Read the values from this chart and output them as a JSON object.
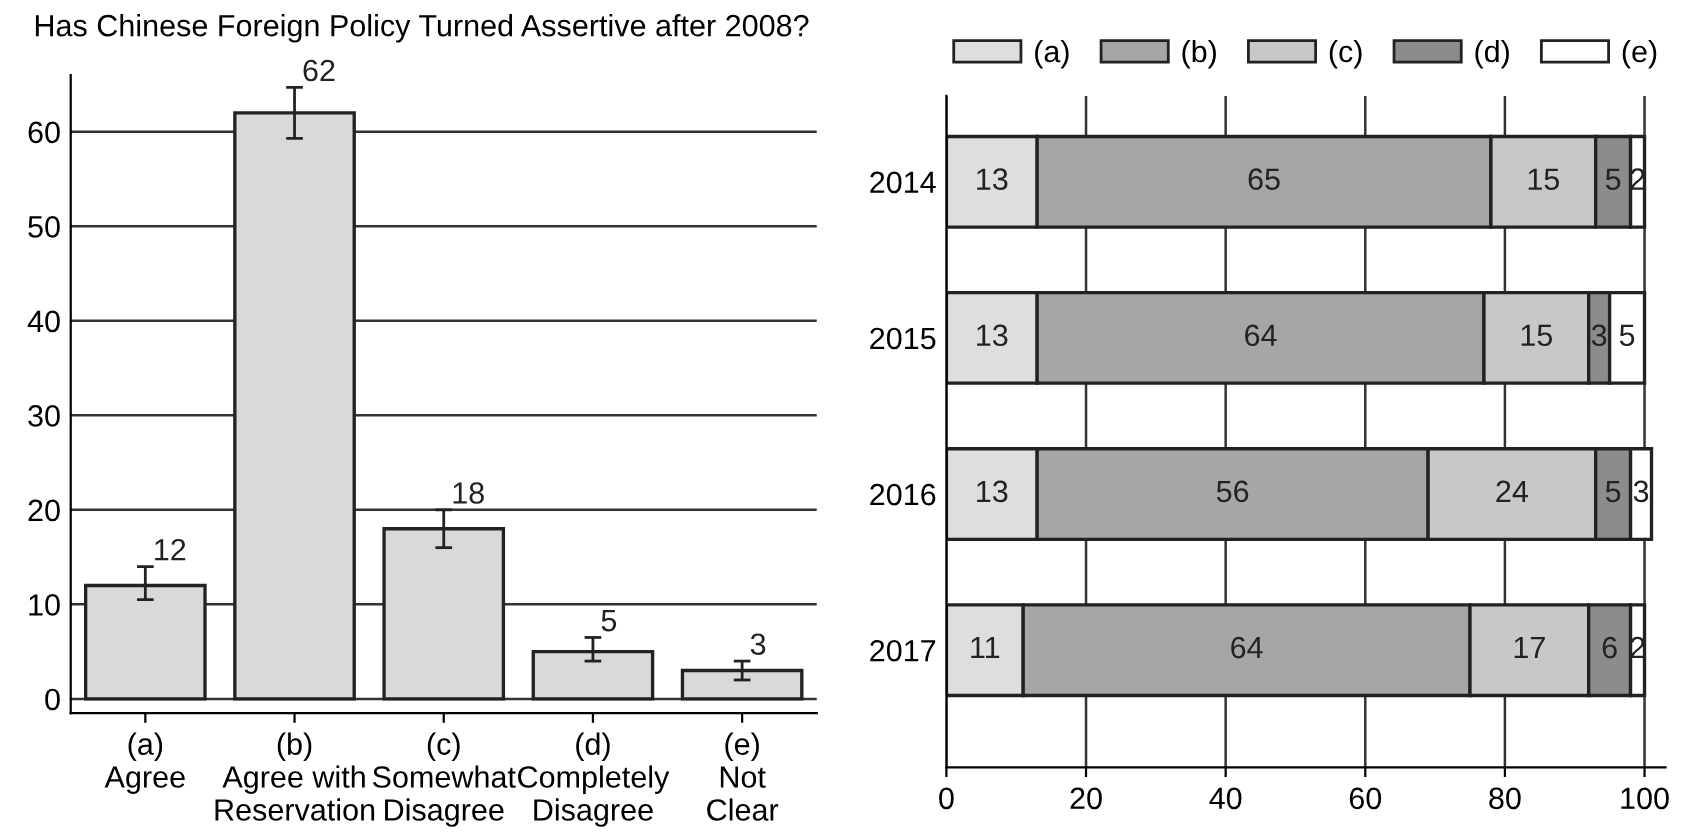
{
  "chart_data": [
    {
      "type": "bar",
      "title": "Has Chinese Foreign Policy Turned Assertive after 2008?",
      "categories": [
        "(a)\nAgree",
        "(b)\nAgree with\nReservation",
        "(c)\nSomewhat\nDisagree",
        "(d)\nCompletely\nDisagree",
        "(e)\nNot\nClear"
      ],
      "values": [
        12,
        62,
        18,
        5,
        3
      ],
      "color": "#d9d9d9",
      "errors": [
        [
          10.5,
          14
        ],
        [
          59.3,
          64.7
        ],
        [
          16,
          20
        ],
        [
          4,
          6.5
        ],
        [
          2,
          4
        ]
      ],
      "ylim": [
        -1.5,
        66
      ],
      "yticks": [
        0,
        10,
        20,
        30,
        40,
        50,
        60
      ],
      "grid": "y",
      "data_labels": true
    },
    {
      "type": "bar",
      "orientation": "horizontal",
      "stacked": true,
      "categories": [
        "2014",
        "2015",
        "2016",
        "2017"
      ],
      "series": [
        {
          "name": "(a)",
          "color": "#dedede",
          "values": [
            13,
            13,
            13,
            11
          ]
        },
        {
          "name": "(b)",
          "color": "#a6a6a6",
          "values": [
            65,
            64,
            56,
            64
          ]
        },
        {
          "name": "(c)",
          "color": "#c8c8c8",
          "values": [
            15,
            15,
            24,
            17
          ]
        },
        {
          "name": "(d)",
          "color": "#8c8c8c",
          "values": [
            5,
            3,
            5,
            6
          ]
        },
        {
          "name": "(e)",
          "color": "#ffffff",
          "values": [
            2,
            5,
            3,
            2
          ]
        }
      ],
      "xlim": [
        0,
        103
      ],
      "xticks": [
        0,
        20,
        40,
        60,
        80,
        100
      ],
      "grid": "x",
      "legend": "top",
      "data_labels": true
    }
  ]
}
